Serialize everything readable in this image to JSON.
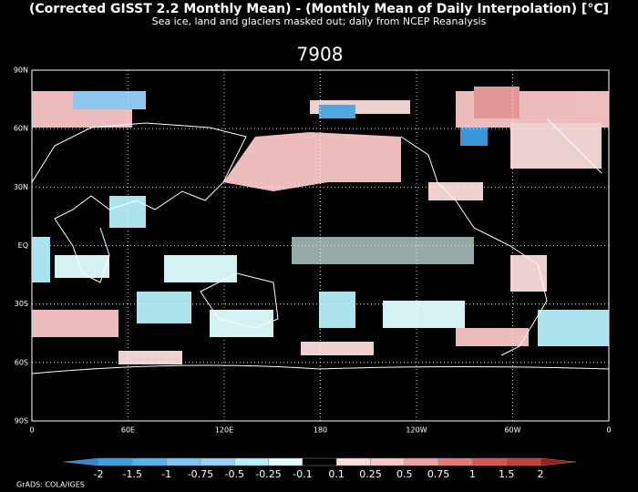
{
  "header": {
    "title": "(Corrected GISST 2.2 Monthly Mean) - (Monthly Mean of Daily Interpolation) [°C]",
    "subtitle": "Sea ice, land and glaciers masked out; daily from NCEP Reanalysis",
    "panel_label": "7908"
  },
  "map": {
    "lat_ticks": [
      {
        "value": 90,
        "label": "90N"
      },
      {
        "value": 60,
        "label": "60N"
      },
      {
        "value": 30,
        "label": "30N"
      },
      {
        "value": 0,
        "label": "EQ"
      },
      {
        "value": -30,
        "label": "30S"
      },
      {
        "value": -60,
        "label": "60S"
      },
      {
        "value": -90,
        "label": "90S"
      }
    ],
    "lon_ticks": [
      0,
      {
        "value": 60,
        "label": "60E"
      },
      {
        "value": 120,
        "label": "120E"
      },
      180,
      {
        "value": 240,
        "label": "120W"
      },
      {
        "value": 300,
        "label": "60W"
      },
      {
        "value": 360,
        "label": "0"
      }
    ],
    "lon_range": [
      0,
      360
    ],
    "lat_range": [
      -90,
      90
    ]
  },
  "colorbar": {
    "levels": [
      -2,
      -1.5,
      -1,
      -0.75,
      -0.5,
      -0.25,
      -0.1,
      0.1,
      0.25,
      0.5,
      0.75,
      1,
      1.5,
      2
    ],
    "colors": [
      "#2a8cd2",
      "#3ca0e0",
      "#50b4f0",
      "#78c8f8",
      "#96d2fa",
      "#b4f0fa",
      "#e1ffff",
      "#000000",
      "#fadcdc",
      "#fac8c8",
      "#f0a0a0",
      "#e87878",
      "#e05050",
      "#c83c3c",
      "#a01e1e"
    ]
  },
  "footer": {
    "credit": "GrADS: COLA/IGES"
  }
}
